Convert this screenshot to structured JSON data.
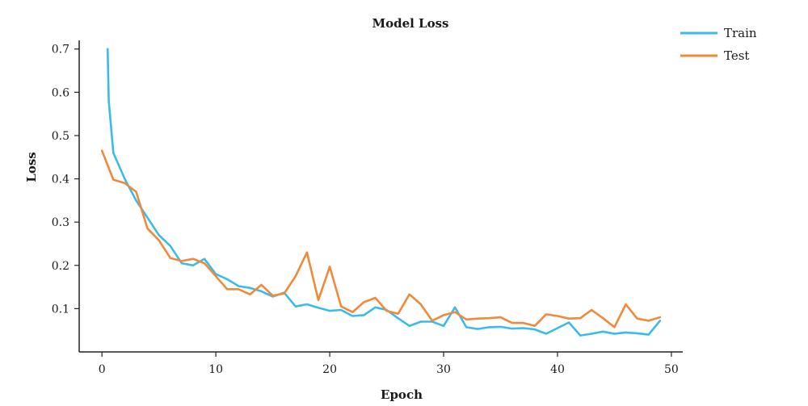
{
  "chart_data": {
    "type": "line",
    "title": "Model Loss",
    "xlabel": "Epoch",
    "ylabel": "Loss",
    "xlim": [
      -2,
      51
    ],
    "ylim": [
      0,
      0.72
    ],
    "xticks": [
      0,
      10,
      20,
      30,
      40,
      50
    ],
    "yticks": [
      0.1,
      0.2,
      0.3,
      0.4,
      0.5,
      0.6,
      0.7
    ],
    "grid": false,
    "legend_position": "top-right",
    "series": [
      {
        "name": "Train",
        "color": "#3bbbe8",
        "x": [
          0.5,
          0.6,
          1,
          2,
          3,
          4,
          5,
          6,
          7,
          8,
          9,
          10,
          11,
          12,
          13,
          14,
          15,
          16,
          17,
          18,
          19,
          20,
          21,
          22,
          23,
          24,
          25,
          26,
          27,
          28,
          29,
          30,
          31,
          32,
          33,
          34,
          35,
          36,
          37,
          38,
          39,
          40,
          41,
          42,
          43,
          44,
          45,
          46,
          47,
          48,
          49
        ],
        "values": [
          0.7,
          0.58,
          0.46,
          0.4,
          0.35,
          0.31,
          0.27,
          0.245,
          0.205,
          0.2,
          0.215,
          0.18,
          0.168,
          0.152,
          0.148,
          0.14,
          0.128,
          0.137,
          0.105,
          0.11,
          0.102,
          0.095,
          0.097,
          0.083,
          0.085,
          0.103,
          0.097,
          0.078,
          0.06,
          0.07,
          0.07,
          0.06,
          0.103,
          0.057,
          0.053,
          0.057,
          0.058,
          0.054,
          0.055,
          0.052,
          0.042,
          0.055,
          0.068,
          0.038,
          0.042,
          0.047,
          0.042,
          0.045,
          0.043,
          0.04,
          0.072
        ]
      },
      {
        "name": "Test",
        "color": "#f0893a",
        "x": [
          0,
          1,
          2,
          3,
          4,
          5,
          6,
          7,
          8,
          9,
          10,
          11,
          12,
          13,
          14,
          15,
          16,
          17,
          18,
          19,
          20,
          21,
          22,
          23,
          24,
          25,
          26,
          27,
          28,
          29,
          30,
          31,
          32,
          33,
          34,
          35,
          36,
          37,
          38,
          39,
          40,
          41,
          42,
          43,
          44,
          45,
          46,
          47,
          48,
          49
        ],
        "values": [
          0.465,
          0.398,
          0.39,
          0.37,
          0.285,
          0.258,
          0.217,
          0.21,
          0.215,
          0.205,
          0.175,
          0.145,
          0.145,
          0.133,
          0.155,
          0.13,
          0.135,
          0.175,
          0.23,
          0.12,
          0.197,
          0.105,
          0.092,
          0.115,
          0.125,
          0.095,
          0.088,
          0.133,
          0.11,
          0.072,
          0.085,
          0.092,
          0.075,
          0.077,
          0.078,
          0.08,
          0.067,
          0.067,
          0.06,
          0.087,
          0.083,
          0.077,
          0.078,
          0.097,
          0.078,
          0.057,
          0.11,
          0.077,
          0.072,
          0.08
        ]
      }
    ]
  }
}
